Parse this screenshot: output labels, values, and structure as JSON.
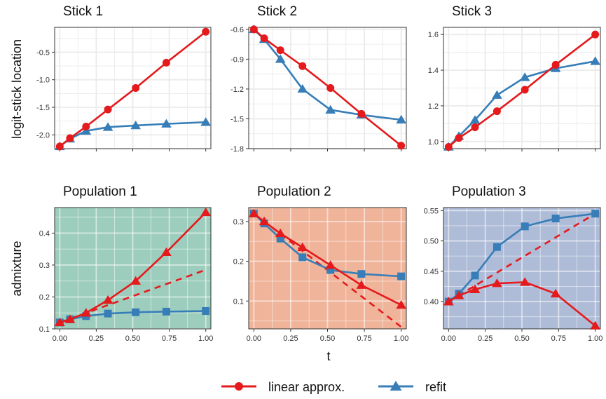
{
  "colors": {
    "linear": "#e41a1c",
    "refit": "#377eb8",
    "pop1_bg": "#9dcdbd",
    "pop2_bg": "#f0b49a",
    "pop3_bg": "#afbcd8",
    "grid": "#ebebeb"
  },
  "labels": {
    "ylabel_top": "logit-stick location",
    "ylabel_bottom": "admixture",
    "xlabel": "t"
  },
  "legend": {
    "linear": "linear approx.",
    "refit": "refit"
  },
  "chart_data": [
    {
      "type": "line",
      "title": "Stick 1",
      "ylim": [
        -2.25,
        -0.05
      ],
      "yticks": [
        -2.0,
        -1.5,
        -1.0,
        -0.5
      ],
      "yticklabels": [
        "-2.0",
        "-1.5",
        "-1.0",
        "-0.5"
      ],
      "xticks": [
        0,
        0.25,
        0.5,
        0.75,
        1.0
      ],
      "show_xticklabels": false,
      "series": [
        {
          "name": "linear approx.",
          "x": [
            0,
            0.07,
            0.18,
            0.33,
            0.52,
            0.73,
            1.0
          ],
          "y": [
            -2.21,
            -2.06,
            -1.85,
            -1.54,
            -1.15,
            -0.69,
            -0.13
          ]
        },
        {
          "name": "refit",
          "x": [
            0,
            0.07,
            0.18,
            0.33,
            0.52,
            0.73,
            1.0
          ],
          "y": [
            -2.21,
            -2.07,
            -1.93,
            -1.86,
            -1.83,
            -1.8,
            -1.77
          ]
        }
      ]
    },
    {
      "type": "line",
      "title": "Stick 2",
      "ylim": [
        -1.8,
        -0.58
      ],
      "yticks": [
        -1.8,
        -1.5,
        -1.2,
        -0.9,
        -0.6
      ],
      "yticklabels": [
        "-1.8",
        "-1.5",
        "-1.2",
        "-0.9",
        "-0.6"
      ],
      "xticks": [
        0,
        0.25,
        0.5,
        0.75,
        1.0
      ],
      "show_xticklabels": false,
      "series": [
        {
          "name": "linear approx.",
          "x": [
            0,
            0.07,
            0.18,
            0.33,
            0.52,
            0.73,
            1.0
          ],
          "y": [
            -0.6,
            -0.69,
            -0.81,
            -0.97,
            -1.19,
            -1.45,
            -1.77
          ]
        },
        {
          "name": "refit",
          "x": [
            0,
            0.07,
            0.18,
            0.33,
            0.52,
            0.73,
            1.0
          ],
          "y": [
            -0.6,
            -0.7,
            -0.9,
            -1.2,
            -1.41,
            -1.46,
            -1.51
          ]
        }
      ]
    },
    {
      "type": "line",
      "title": "Stick 3",
      "ylim": [
        0.96,
        1.64
      ],
      "yticks": [
        1.0,
        1.2,
        1.4,
        1.6
      ],
      "yticklabels": [
        "1.0",
        "1.2",
        "1.4",
        "1.6"
      ],
      "xticks": [
        0,
        0.25,
        0.5,
        0.75,
        1.0
      ],
      "show_xticklabels": false,
      "series": [
        {
          "name": "linear approx.",
          "x": [
            0,
            0.07,
            0.18,
            0.33,
            0.52,
            0.73,
            1.0
          ],
          "y": [
            0.97,
            1.02,
            1.08,
            1.17,
            1.29,
            1.43,
            1.6
          ]
        },
        {
          "name": "refit",
          "x": [
            0,
            0.07,
            0.18,
            0.33,
            0.52,
            0.73,
            1.0
          ],
          "y": [
            0.97,
            1.03,
            1.12,
            1.26,
            1.36,
            1.41,
            1.45
          ]
        }
      ]
    },
    {
      "type": "line",
      "title": "Population 1",
      "bg": "pop1_bg",
      "ylim": [
        0.1,
        0.48
      ],
      "yticks": [
        0.1,
        0.2,
        0.3,
        0.4
      ],
      "yticklabels": [
        "0.1",
        "0.2",
        "0.3",
        "0.4"
      ],
      "xticks": [
        0,
        0.25,
        0.5,
        0.75,
        1.0
      ],
      "xticklabels": [
        "0.00",
        "0.25",
        "0.50",
        "0.75",
        "1.00"
      ],
      "show_xticklabels": true,
      "series": [
        {
          "name": "linear approx.",
          "x": [
            0,
            0.07,
            0.18,
            0.33,
            0.52,
            0.73,
            1.0
          ],
          "y": [
            0.12,
            0.13,
            0.15,
            0.19,
            0.25,
            0.34,
            0.465
          ]
        },
        {
          "name": "refit",
          "x": [
            0,
            0.07,
            0.18,
            0.33,
            0.52,
            0.73,
            1.0
          ],
          "y": [
            0.12,
            0.13,
            0.14,
            0.148,
            0.152,
            0.154,
            0.156
          ]
        },
        {
          "name": "dashed",
          "x": [
            0,
            1.0
          ],
          "y": [
            0.12,
            0.285
          ]
        }
      ]
    },
    {
      "type": "line",
      "title": "Population 2",
      "bg": "pop2_bg",
      "ylim": [
        0.03,
        0.335
      ],
      "yticks": [
        0.1,
        0.2,
        0.3
      ],
      "yticklabels": [
        "0.1",
        "0.2",
        "0.3"
      ],
      "xticks": [
        0,
        0.25,
        0.5,
        0.75,
        1.0
      ],
      "xticklabels": [
        "0.00",
        "0.25",
        "0.50",
        "0.75",
        "1.00"
      ],
      "show_xticklabels": true,
      "series": [
        {
          "name": "linear approx.",
          "x": [
            0,
            0.07,
            0.18,
            0.33,
            0.52,
            0.73,
            1.0
          ],
          "y": [
            0.32,
            0.3,
            0.27,
            0.235,
            0.19,
            0.14,
            0.09
          ]
        },
        {
          "name": "refit",
          "x": [
            0,
            0.07,
            0.18,
            0.33,
            0.52,
            0.73,
            1.0
          ],
          "y": [
            0.32,
            0.295,
            0.257,
            0.21,
            0.178,
            0.168,
            0.162
          ]
        },
        {
          "name": "dashed",
          "x": [
            0,
            1.0
          ],
          "y": [
            0.32,
            0.035
          ]
        }
      ]
    },
    {
      "type": "line",
      "title": "Population 3",
      "bg": "pop3_bg",
      "ylim": [
        0.355,
        0.555
      ],
      "yticks": [
        0.4,
        0.45,
        0.5,
        0.55
      ],
      "yticklabels": [
        "0.40",
        "0.45",
        "0.50",
        "0.55"
      ],
      "xticks": [
        0,
        0.25,
        0.5,
        0.75,
        1.0
      ],
      "xticklabels": [
        "0.00",
        "0.25",
        "0.50",
        "0.75",
        "1.00"
      ],
      "show_xticklabels": true,
      "series": [
        {
          "name": "linear approx.",
          "x": [
            0,
            0.07,
            0.18,
            0.33,
            0.52,
            0.73,
            1.0
          ],
          "y": [
            0.4,
            0.41,
            0.42,
            0.43,
            0.432,
            0.413,
            0.36
          ]
        },
        {
          "name": "refit",
          "x": [
            0,
            0.07,
            0.18,
            0.33,
            0.52,
            0.73,
            1.0
          ],
          "y": [
            0.4,
            0.413,
            0.443,
            0.49,
            0.524,
            0.537,
            0.545
          ]
        },
        {
          "name": "dashed",
          "x": [
            0,
            1.0
          ],
          "y": [
            0.4,
            0.545
          ]
        }
      ]
    }
  ]
}
